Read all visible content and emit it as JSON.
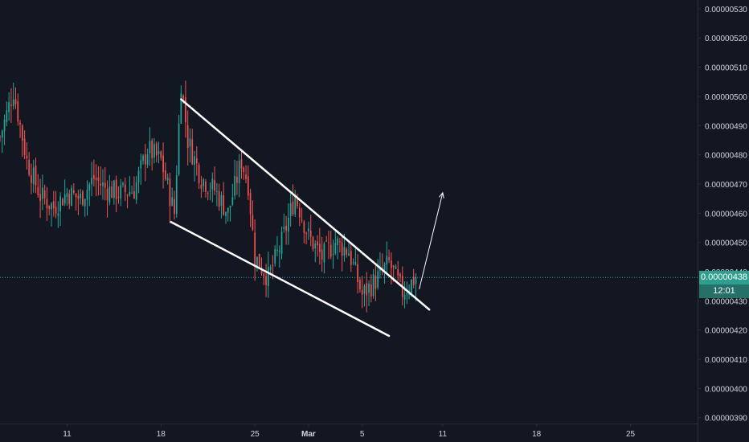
{
  "colors": {
    "background": "#131722",
    "up": "#26a69a",
    "down": "#ef5350",
    "axis_text": "#d1d4dc",
    "axis_line": "#2a2e39",
    "trendline": "#ffffff",
    "price_line": "#26a69a",
    "price_tag": "#2e9e8f"
  },
  "chart_data": {
    "type": "candlestick",
    "interval": "4h",
    "x_range": [
      "2019-02-06",
      "2019-03-30"
    ],
    "ylim": [
      3.88e-06,
      5.33e-06
    ],
    "y_ticks": [
      "0.00000530",
      "0.00000520",
      "0.00000510",
      "0.00000500",
      "0.00000490",
      "0.00000480",
      "0.00000470",
      "0.00000460",
      "0.00000450",
      "0.00000440",
      "0.00000430",
      "0.00000420",
      "0.00000410",
      "0.00000400",
      "0.00000390"
    ],
    "x_ticks": [
      {
        "label": "11",
        "date": "2019-02-11"
      },
      {
        "label": "18",
        "date": "2019-02-18"
      },
      {
        "label": "25",
        "date": "2019-02-25"
      },
      {
        "label": "Mar",
        "date": "2019-03-01"
      },
      {
        "label": "5",
        "date": "2019-03-05"
      },
      {
        "label": "11",
        "date": "2019-03-11"
      },
      {
        "label": "18",
        "date": "2019-03-18"
      },
      {
        "label": "25",
        "date": "2019-03-25"
      }
    ],
    "anchors": [
      [
        "2019-02-06",
        4.86e-06
      ],
      [
        "2019-02-07",
        5.02e-06
      ],
      [
        "2019-02-08",
        4.78e-06
      ],
      [
        "2019-02-09",
        4.66e-06
      ],
      [
        "2019-02-10",
        4.62e-06
      ],
      [
        "2019-02-11",
        4.67e-06
      ],
      [
        "2019-02-12",
        4.65e-06
      ],
      [
        "2019-02-13",
        4.72e-06
      ],
      [
        "2019-02-14",
        4.68e-06
      ],
      [
        "2019-02-15",
        4.67e-06
      ],
      [
        "2019-02-16",
        4.68e-06
      ],
      [
        "2019-02-17",
        4.82e-06
      ],
      [
        "2019-02-18",
        4.78e-06
      ],
      [
        "2019-02-19",
        4.6e-06
      ],
      [
        "2019-02-19 12:00",
        5.05e-06
      ],
      [
        "2019-02-20",
        4.85e-06
      ],
      [
        "2019-02-21",
        4.72e-06
      ],
      [
        "2019-02-22",
        4.68e-06
      ],
      [
        "2019-02-23",
        4.6e-06
      ],
      [
        "2019-02-24",
        4.78e-06
      ],
      [
        "2019-02-24 12:00",
        4.7e-06
      ],
      [
        "2019-02-25",
        4.45e-06
      ],
      [
        "2019-02-26",
        4.38e-06
      ],
      [
        "2019-02-27",
        4.5e-06
      ],
      [
        "2019-02-28",
        4.66e-06
      ],
      [
        "2019-03-01",
        4.52e-06
      ],
      [
        "2019-03-02",
        4.45e-06
      ],
      [
        "2019-03-03",
        4.5e-06
      ],
      [
        "2019-03-04",
        4.47e-06
      ],
      [
        "2019-03-05",
        4.32e-06
      ],
      [
        "2019-03-06",
        4.37e-06
      ],
      [
        "2019-03-07",
        4.43e-06
      ],
      [
        "2019-03-08",
        4.33e-06
      ],
      [
        "2019-03-09",
        4.38e-06
      ]
    ],
    "last_price": "0.00000438",
    "countdown": "12:01",
    "trendlines": [
      {
        "name": "upper-channel-line",
        "from": [
          "2019-02-19 12:00",
          4.99e-06
        ],
        "to": [
          "2019-03-10",
          4.27e-06
        ]
      },
      {
        "name": "lower-channel-line",
        "from": [
          "2019-02-18 18:00",
          4.57e-06
        ],
        "to": [
          "2019-03-07",
          4.18e-06
        ]
      }
    ],
    "projection_arrow": {
      "from": [
        "2019-03-09 06:00",
        4.34e-06
      ],
      "to": [
        "2019-03-11",
        4.67e-06
      ]
    },
    "grid": false,
    "legend": "none"
  }
}
